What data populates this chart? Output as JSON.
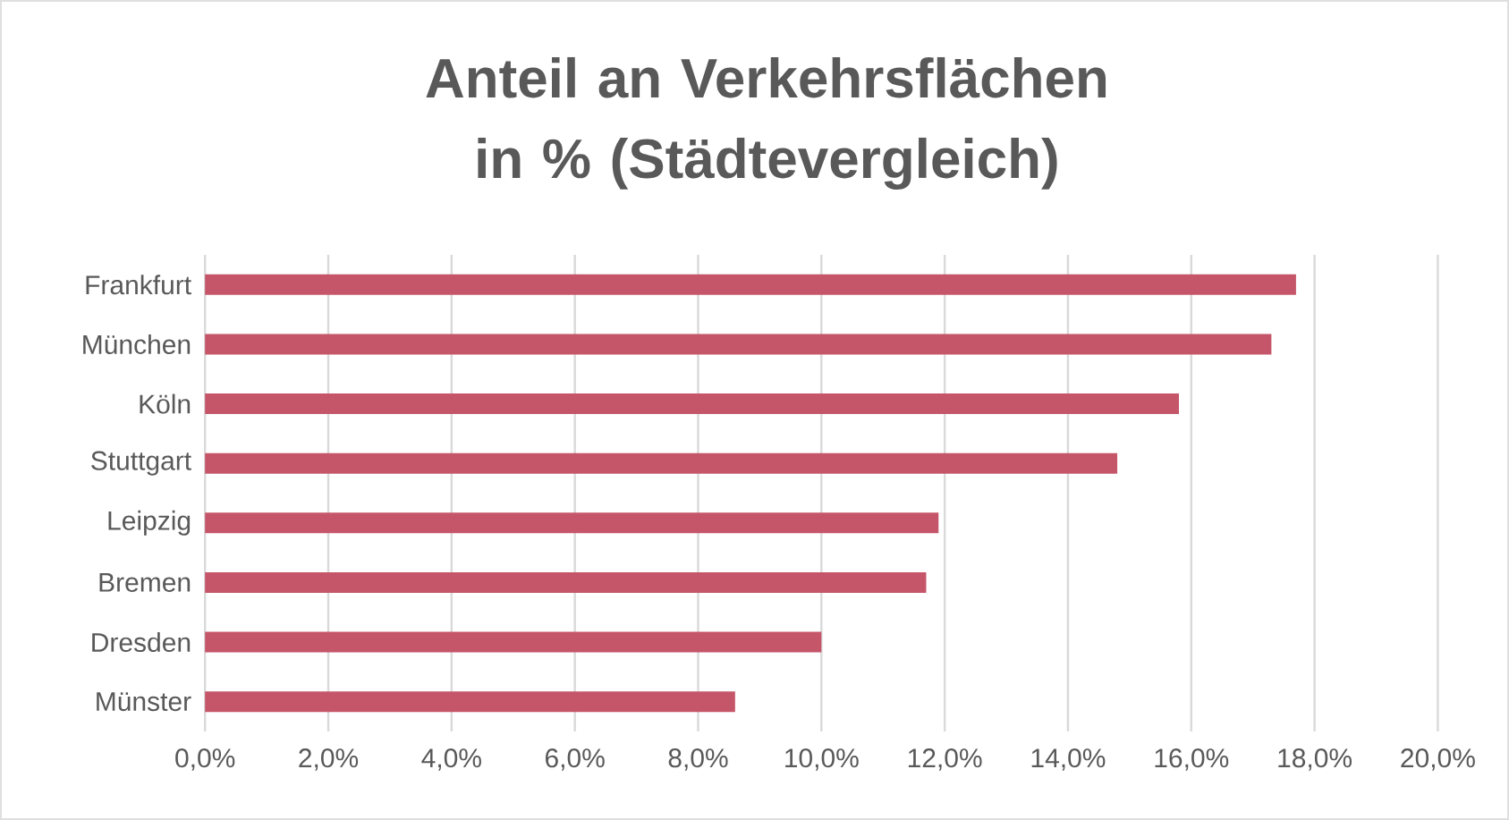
{
  "chart_data": {
    "type": "bar",
    "orientation": "horizontal",
    "title": "Anteil an Verkehrsflächen in % (Städtevergleich)",
    "categories": [
      "Frankfurt",
      "München",
      "Köln",
      "Stuttgart",
      "Leipzig",
      "Bremen",
      "Dresden",
      "Münster"
    ],
    "values": [
      17.7,
      17.3,
      15.8,
      14.8,
      11.9,
      11.7,
      10.0,
      8.6
    ],
    "color": "#c5566a",
    "xlim": [
      0,
      20
    ],
    "xticks": [
      {
        "value": 0,
        "label": "0,0%"
      },
      {
        "value": 2,
        "label": "2,0%"
      },
      {
        "value": 4,
        "label": "4,0%"
      },
      {
        "value": 6,
        "label": "6,0%"
      },
      {
        "value": 8,
        "label": "8,0%"
      },
      {
        "value": 10,
        "label": "10,0%"
      },
      {
        "value": 12,
        "label": "12,0%"
      },
      {
        "value": 14,
        "label": "14,0%"
      },
      {
        "value": 16,
        "label": "16,0%"
      },
      {
        "value": 18,
        "label": "18,0%"
      },
      {
        "value": 20,
        "label": "20,0%"
      }
    ],
    "grid": "x"
  }
}
